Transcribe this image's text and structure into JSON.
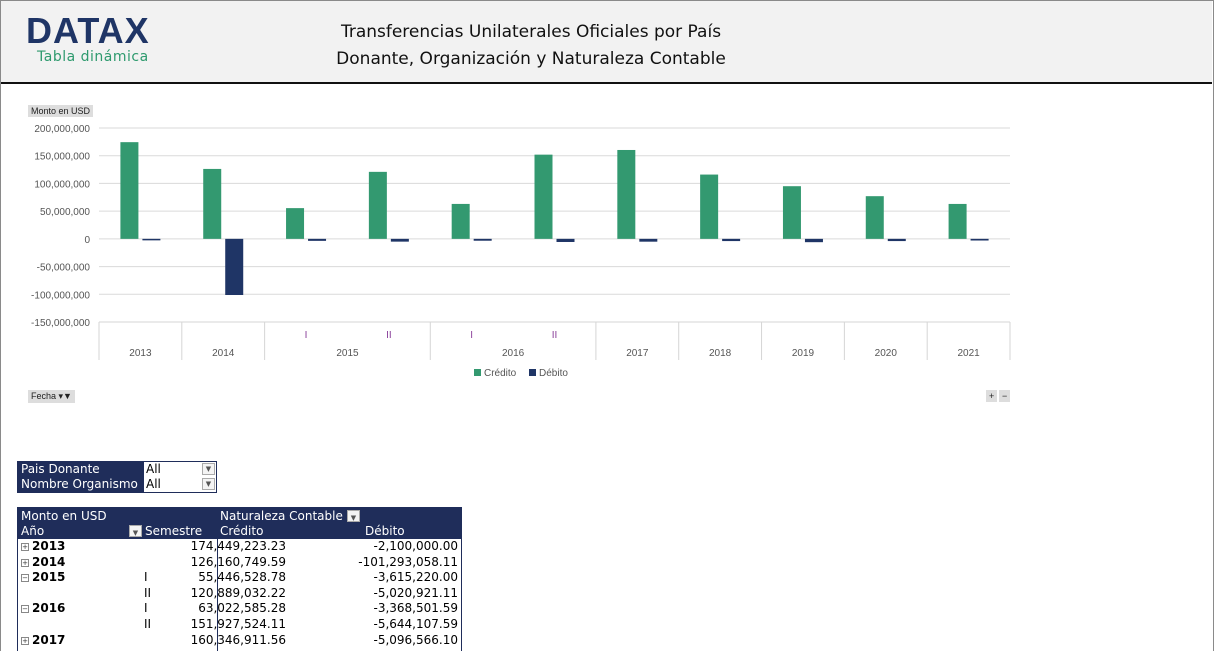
{
  "header": {
    "logo": "DATAX",
    "logo_subtitle": "Tabla dinámica",
    "title_line1": "Transferencias Unilaterales Oficiales por País",
    "title_line2": "Donante, Organización y Naturaleza Contable"
  },
  "chart_controls": {
    "value_field": "Monto en USD",
    "axis_field": "Fecha",
    "expand": "+",
    "collapse": "−"
  },
  "chart_data": {
    "type": "bar",
    "ylabel": "Monto en USD",
    "ylim": [
      -150000000,
      200000000
    ],
    "yticks": [
      200000000,
      150000000,
      100000000,
      50000000,
      0,
      -50000000,
      -100000000,
      -150000000
    ],
    "ytick_labels": [
      "200,000,000",
      "150,000,000",
      "100,000,000",
      "50,000,000",
      "0",
      "-50,000,000",
      "-100,000,000",
      "-150,000,000"
    ],
    "groups": [
      {
        "year": "2013",
        "subs": [
          ""
        ]
      },
      {
        "year": "2014",
        "subs": [
          ""
        ]
      },
      {
        "year": "2015",
        "subs": [
          "I",
          "II"
        ]
      },
      {
        "year": "2016",
        "subs": [
          "I",
          "II"
        ]
      },
      {
        "year": "2017",
        "subs": [
          ""
        ]
      },
      {
        "year": "2018",
        "subs": [
          ""
        ]
      },
      {
        "year": "2019",
        "subs": [
          ""
        ]
      },
      {
        "year": "2020",
        "subs": [
          ""
        ]
      },
      {
        "year": "2021",
        "subs": [
          ""
        ]
      }
    ],
    "series": [
      {
        "name": "Crédito",
        "color": "#339970",
        "values": [
          174449223.23,
          126160749.59,
          55446528.78,
          120889032.22,
          63022585.28,
          151927524.11,
          160346911.56,
          116000000,
          95000000,
          77000000,
          63000000
        ]
      },
      {
        "name": "Débito",
        "color": "#1f3566",
        "values": [
          -2100000,
          -101293058.11,
          -3615220,
          -5020921.11,
          -3368501.59,
          -5644107.59,
          -5096566.1,
          -4000000,
          -6000000,
          -4000000,
          -3000000
        ]
      }
    ],
    "legend": "bottom"
  },
  "filters": [
    {
      "label": "Pais Donante",
      "value": "All"
    },
    {
      "label": "Nombre Organismo",
      "value": "All"
    }
  ],
  "pivot": {
    "corner": "Monto en USD",
    "col_field": "Naturaleza Contable",
    "row_field1": "Año",
    "row_field2": "Semestre",
    "col1": "Crédito",
    "col2": "Débito",
    "rows": [
      {
        "exp": "+",
        "year": "2013",
        "sem": "",
        "credito": "174,449,223.23",
        "debito": "-2,100,000.00"
      },
      {
        "exp": "+",
        "year": "2014",
        "sem": "",
        "credito": "126,160,749.59",
        "debito": "-101,293,058.11"
      },
      {
        "exp": "−",
        "year": "2015",
        "sem": "I",
        "credito": "55,446,528.78",
        "debito": "-3,615,220.00"
      },
      {
        "exp": "",
        "year": "",
        "sem": "II",
        "credito": "120,889,032.22",
        "debito": "-5,020,921.11"
      },
      {
        "exp": "−",
        "year": "2016",
        "sem": "I",
        "credito": "63,022,585.28",
        "debito": "-3,368,501.59"
      },
      {
        "exp": "",
        "year": "",
        "sem": "II",
        "credito": "151,927,524.11",
        "debito": "-5,644,107.59"
      },
      {
        "exp": "+",
        "year": "2017",
        "sem": "",
        "credito": "160,346,911.56",
        "debito": "-5,096,566.10"
      }
    ]
  }
}
